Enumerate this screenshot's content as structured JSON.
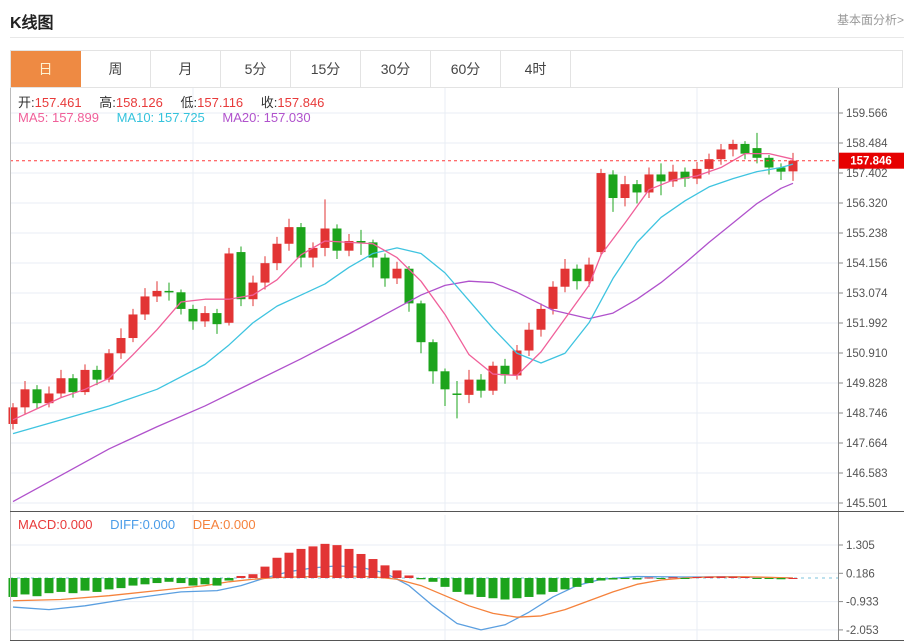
{
  "header": {
    "title": "K线图",
    "link": "基本面分析>"
  },
  "tabs": [
    {
      "key": "day",
      "label": "日",
      "active": true
    },
    {
      "key": "week",
      "label": "周",
      "active": false
    },
    {
      "key": "month",
      "label": "月",
      "active": false
    },
    {
      "key": "5min",
      "label": "5分",
      "active": false
    },
    {
      "key": "15min",
      "label": "15分",
      "active": false
    },
    {
      "key": "30min",
      "label": "30分",
      "active": false
    },
    {
      "key": "60min",
      "label": "60分",
      "active": false
    },
    {
      "key": "4hour",
      "label": "4时",
      "active": false
    }
  ],
  "info": {
    "open_label": "开:",
    "open": "157.461",
    "high_label": "高:",
    "high": "158.126",
    "low_label": "低:",
    "low": "157.116",
    "close_label": "收:",
    "close": "157.846",
    "ma5_label": "MA5:",
    "ma5": "157.899",
    "ma10_label": "MA10:",
    "ma10": "157.725",
    "ma20_label": "MA20:",
    "ma20": "157.030"
  },
  "macd_info": {
    "macd_label": "MACD:",
    "macd": "0.000",
    "diff_label": "DIFF:",
    "diff": "0.000",
    "dea_label": "DEA:",
    "dea": "0.000"
  },
  "colors": {
    "candle_up": "#e23434",
    "candle_down": "#1ca41c",
    "ma5": "#f0609a",
    "ma10": "#3fc4e0",
    "ma20": "#b052cc",
    "diff": "#5b9fe0",
    "dea": "#f5823c",
    "grid": "#e9eef4",
    "axis_line": "#8a8a8a",
    "panel_border": "#555555",
    "axis_text": "#555555",
    "current_line": "#ff3b3b",
    "price_tag_bg": "#e60000",
    "price_tag_text": "#ffffff",
    "zero_line": "#a9d7e8",
    "tab_active_bg": "#ee8a43"
  },
  "chart_data": {
    "type": "candlestick_with_macd",
    "price_axis": {
      "ticks": [
        159.566,
        158.484,
        157.402,
        156.32,
        155.238,
        154.156,
        153.074,
        151.992,
        150.91,
        149.828,
        148.746,
        147.664,
        146.583,
        145.501
      ],
      "tick_labels": [
        "159.566",
        "158.484",
        "157.402",
        "156.320",
        "155.238",
        "154.156",
        "153.074",
        "151.992",
        "150.910",
        "149.828",
        "148.746",
        "147.664",
        "146.583",
        "145.501"
      ],
      "current_price": 157.846,
      "current_price_label": "157.846"
    },
    "candles": [
      [
        148.35,
        149.1,
        148.15,
        148.95
      ],
      [
        148.95,
        149.9,
        148.7,
        149.6
      ],
      [
        149.6,
        149.75,
        148.9,
        149.1
      ],
      [
        149.1,
        149.7,
        148.95,
        149.45
      ],
      [
        149.45,
        150.3,
        149.3,
        150.0
      ],
      [
        150.0,
        150.15,
        149.3,
        149.5
      ],
      [
        149.5,
        150.5,
        149.4,
        150.3
      ],
      [
        150.3,
        150.45,
        149.75,
        149.95
      ],
      [
        149.95,
        151.05,
        149.85,
        150.9
      ],
      [
        150.9,
        151.8,
        150.7,
        151.45
      ],
      [
        151.45,
        152.5,
        151.3,
        152.3
      ],
      [
        152.3,
        153.25,
        152.1,
        152.95
      ],
      [
        152.95,
        153.5,
        152.75,
        153.15
      ],
      [
        153.15,
        153.45,
        152.8,
        153.1
      ],
      [
        153.1,
        153.2,
        152.3,
        152.5
      ],
      [
        152.5,
        152.65,
        151.75,
        152.05
      ],
      [
        152.05,
        152.6,
        151.85,
        152.35
      ],
      [
        152.35,
        152.5,
        151.6,
        151.95
      ],
      [
        152.0,
        154.7,
        151.9,
        154.5
      ],
      [
        154.55,
        154.75,
        152.6,
        152.85
      ],
      [
        152.85,
        153.7,
        152.6,
        153.45
      ],
      [
        153.45,
        154.4,
        153.2,
        154.15
      ],
      [
        154.15,
        155.1,
        153.9,
        154.85
      ],
      [
        154.85,
        155.75,
        154.6,
        155.45
      ],
      [
        155.45,
        155.6,
        154.0,
        154.35
      ],
      [
        154.35,
        154.9,
        154.0,
        154.7
      ],
      [
        154.7,
        156.45,
        154.4,
        155.4
      ],
      [
        155.4,
        155.55,
        154.3,
        154.6
      ],
      [
        154.6,
        155.2,
        154.4,
        154.95
      ],
      [
        154.95,
        155.35,
        154.45,
        154.9
      ],
      [
        154.9,
        155.0,
        154.0,
        154.35
      ],
      [
        154.35,
        154.5,
        153.3,
        153.6
      ],
      [
        153.6,
        154.2,
        153.4,
        153.95
      ],
      [
        153.95,
        154.05,
        152.4,
        152.7
      ],
      [
        152.7,
        152.8,
        150.9,
        151.3
      ],
      [
        151.3,
        151.4,
        149.8,
        150.25
      ],
      [
        150.25,
        150.35,
        149.0,
        149.6
      ],
      [
        149.45,
        149.9,
        148.55,
        149.4
      ],
      [
        149.4,
        150.3,
        149.1,
        149.95
      ],
      [
        149.95,
        150.15,
        149.3,
        149.55
      ],
      [
        149.55,
        150.6,
        149.4,
        150.45
      ],
      [
        150.45,
        150.7,
        149.8,
        150.1
      ],
      [
        150.1,
        151.2,
        149.95,
        151.0
      ],
      [
        151.0,
        152.0,
        150.8,
        151.75
      ],
      [
        151.75,
        152.7,
        151.5,
        152.5
      ],
      [
        152.5,
        153.5,
        152.3,
        153.3
      ],
      [
        153.3,
        154.3,
        153.1,
        153.95
      ],
      [
        153.95,
        154.1,
        153.2,
        153.5
      ],
      [
        153.5,
        154.35,
        153.3,
        154.1
      ],
      [
        154.55,
        157.55,
        154.4,
        157.4
      ],
      [
        157.35,
        157.5,
        156.0,
        156.5
      ],
      [
        156.5,
        157.3,
        156.2,
        157.0
      ],
      [
        157.0,
        157.15,
        156.3,
        156.7
      ],
      [
        156.7,
        157.6,
        156.5,
        157.35
      ],
      [
        157.35,
        157.75,
        156.6,
        157.1
      ],
      [
        157.1,
        157.7,
        156.9,
        157.45
      ],
      [
        157.45,
        157.6,
        156.9,
        157.2
      ],
      [
        157.2,
        157.8,
        157.0,
        157.55
      ],
      [
        157.55,
        158.1,
        157.35,
        157.9
      ],
      [
        157.9,
        158.45,
        157.7,
        158.25
      ],
      [
        158.25,
        158.6,
        158.0,
        158.45
      ],
      [
        158.45,
        158.55,
        157.9,
        158.1
      ],
      [
        158.3,
        158.85,
        157.75,
        157.95
      ],
      [
        157.95,
        158.05,
        157.35,
        157.6
      ],
      [
        157.6,
        157.75,
        157.15,
        157.45
      ],
      [
        157.461,
        158.126,
        157.116,
        157.846
      ]
    ],
    "ma5_points": [
      [
        0,
        148.5
      ],
      [
        2,
        148.9
      ],
      [
        4,
        149.3
      ],
      [
        6,
        149.6
      ],
      [
        8,
        150.0
      ],
      [
        10,
        150.85
      ],
      [
        12,
        151.75
      ],
      [
        14,
        152.75
      ],
      [
        16,
        152.85
      ],
      [
        18,
        152.85
      ],
      [
        20,
        153.0
      ],
      [
        22,
        153.55
      ],
      [
        24,
        154.45
      ],
      [
        26,
        154.95
      ],
      [
        28,
        154.9
      ],
      [
        30,
        154.85
      ],
      [
        32,
        154.35
      ],
      [
        34,
        153.5
      ],
      [
        36,
        152.3
      ],
      [
        38,
        150.85
      ],
      [
        40,
        150.15
      ],
      [
        42,
        150.1
      ],
      [
        44,
        150.95
      ],
      [
        46,
        152.15
      ],
      [
        48,
        153.35
      ],
      [
        49,
        154.45
      ],
      [
        51,
        155.6
      ],
      [
        53,
        156.8
      ],
      [
        55,
        157.15
      ],
      [
        57,
        157.3
      ],
      [
        59,
        157.6
      ],
      [
        61,
        158.1
      ],
      [
        63,
        158.1
      ],
      [
        65,
        157.9
      ]
    ],
    "ma10_points": [
      [
        0,
        148.0
      ],
      [
        4,
        148.5
      ],
      [
        8,
        149.0
      ],
      [
        12,
        149.6
      ],
      [
        16,
        150.5
      ],
      [
        18,
        151.2
      ],
      [
        20,
        152.0
      ],
      [
        22,
        152.6
      ],
      [
        24,
        153.0
      ],
      [
        26,
        153.4
      ],
      [
        28,
        154.0
      ],
      [
        30,
        154.5
      ],
      [
        32,
        154.7
      ],
      [
        34,
        154.5
      ],
      [
        36,
        153.8
      ],
      [
        38,
        152.8
      ],
      [
        40,
        151.8
      ],
      [
        42,
        150.9
      ],
      [
        44,
        150.55
      ],
      [
        46,
        150.9
      ],
      [
        48,
        152.0
      ],
      [
        50,
        153.6
      ],
      [
        52,
        154.9
      ],
      [
        54,
        155.8
      ],
      [
        56,
        156.4
      ],
      [
        58,
        156.9
      ],
      [
        60,
        157.2
      ],
      [
        62,
        157.45
      ],
      [
        64,
        157.6
      ],
      [
        65,
        157.72
      ]
    ],
    "ma20_points": [
      [
        0,
        145.55
      ],
      [
        4,
        146.5
      ],
      [
        8,
        147.45
      ],
      [
        12,
        148.25
      ],
      [
        16,
        149.0
      ],
      [
        20,
        149.85
      ],
      [
        24,
        150.7
      ],
      [
        28,
        151.6
      ],
      [
        31,
        152.3
      ],
      [
        34,
        153.0
      ],
      [
        36,
        153.35
      ],
      [
        38,
        153.5
      ],
      [
        40,
        153.45
      ],
      [
        42,
        153.1
      ],
      [
        45,
        152.45
      ],
      [
        48,
        152.15
      ],
      [
        50,
        152.35
      ],
      [
        52,
        152.85
      ],
      [
        54,
        153.45
      ],
      [
        56,
        154.15
      ],
      [
        58,
        154.9
      ],
      [
        60,
        155.6
      ],
      [
        62,
        156.3
      ],
      [
        64,
        156.85
      ],
      [
        65,
        157.03
      ]
    ],
    "macd_axis": {
      "ticks": [
        1.305,
        0.186,
        -0.933,
        -2.053
      ],
      "tick_labels": [
        "1.305",
        "0.186",
        "-0.933",
        "-2.053"
      ]
    },
    "histogram": [
      -0.75,
      -0.65,
      -0.72,
      -0.6,
      -0.55,
      -0.6,
      -0.5,
      -0.55,
      -0.45,
      -0.4,
      -0.3,
      -0.25,
      -0.2,
      -0.15,
      -0.2,
      -0.3,
      -0.25,
      -0.3,
      -0.1,
      0.08,
      0.15,
      0.45,
      0.8,
      1.0,
      1.15,
      1.25,
      1.35,
      1.3,
      1.15,
      0.95,
      0.75,
      0.5,
      0.3,
      0.1,
      -0.05,
      -0.15,
      -0.35,
      -0.55,
      -0.65,
      -0.75,
      -0.8,
      -0.85,
      -0.8,
      -0.75,
      -0.65,
      -0.55,
      -0.45,
      -0.35,
      -0.2,
      -0.1,
      -0.06,
      -0.04,
      -0.06,
      0.02,
      -0.03,
      0.03,
      -0.02,
      0.04,
      0.05,
      0.06,
      0.05,
      0.04,
      -0.02,
      -0.04,
      -0.05,
      0.0
    ],
    "diff_points": [
      [
        0,
        -1.15
      ],
      [
        3,
        -1.25
      ],
      [
        6,
        -1.1
      ],
      [
        10,
        -0.8
      ],
      [
        14,
        -0.55
      ],
      [
        17,
        -0.5
      ],
      [
        19,
        -0.3
      ],
      [
        21,
        0.0
      ],
      [
        23,
        0.25
      ],
      [
        25,
        0.4
      ],
      [
        27,
        0.48
      ],
      [
        29,
        0.42
      ],
      [
        31,
        0.2
      ],
      [
        33,
        -0.3
      ],
      [
        35,
        -1.1
      ],
      [
        37,
        -1.8
      ],
      [
        39,
        -2.05
      ],
      [
        41,
        -1.85
      ],
      [
        43,
        -1.35
      ],
      [
        45,
        -0.75
      ],
      [
        47,
        -0.3
      ],
      [
        49,
        -0.05
      ],
      [
        52,
        0.06
      ],
      [
        56,
        0.04
      ],
      [
        60,
        0.05
      ],
      [
        63,
        0.02
      ],
      [
        65,
        0.0
      ]
    ],
    "dea_points": [
      [
        0,
        -0.9
      ],
      [
        4,
        -0.85
      ],
      [
        8,
        -0.7
      ],
      [
        12,
        -0.5
      ],
      [
        16,
        -0.3
      ],
      [
        18,
        -0.15
      ],
      [
        20,
        -0.05
      ],
      [
        22,
        0.02
      ],
      [
        25,
        0.06
      ],
      [
        28,
        0.08
      ],
      [
        30,
        0.05
      ],
      [
        32,
        -0.05
      ],
      [
        34,
        -0.3
      ],
      [
        36,
        -0.7
      ],
      [
        38,
        -1.1
      ],
      [
        40,
        -1.4
      ],
      [
        42,
        -1.55
      ],
      [
        44,
        -1.5
      ],
      [
        46,
        -1.25
      ],
      [
        48,
        -0.9
      ],
      [
        50,
        -0.55
      ],
      [
        52,
        -0.25
      ],
      [
        54,
        -0.08
      ],
      [
        56,
        0.0
      ],
      [
        58,
        0.04
      ],
      [
        61,
        0.05
      ],
      [
        65,
        0.0
      ]
    ]
  }
}
